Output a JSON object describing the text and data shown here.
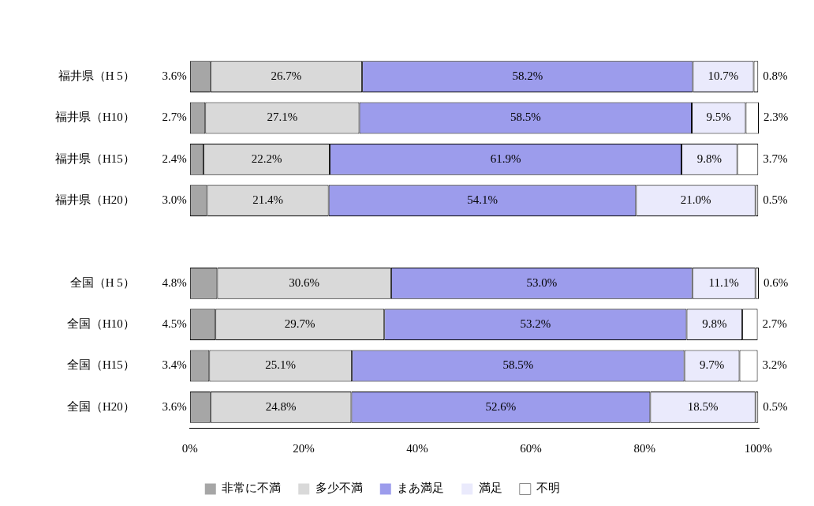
{
  "chart_data": {
    "type": "bar",
    "orientation": "horizontal",
    "stacked": true,
    "categories": [
      "福井県（H 5）",
      "福井県（H10）",
      "福井県（H15）",
      "福井県（H20）",
      null,
      "全国（H 5）",
      "全国（H10）",
      "全国（H15）",
      "全国（H20）"
    ],
    "series": [
      {
        "name": "非常に不満",
        "color": "#a6a6a6",
        "values": [
          3.6,
          2.7,
          2.4,
          3.0,
          null,
          4.8,
          4.5,
          3.4,
          3.6
        ],
        "value_labels": [
          "3.6%",
          "2.7%",
          "2.4%",
          "3.0%",
          null,
          "4.8%",
          "4.5%",
          "3.4%",
          "3.6%"
        ]
      },
      {
        "name": "多少不満",
        "color": "#d9d9d9",
        "values": [
          26.7,
          27.1,
          22.2,
          21.4,
          null,
          30.6,
          29.7,
          25.1,
          24.8
        ],
        "value_labels": [
          "26.7%",
          "27.1%",
          "22.2%",
          "21.4%",
          null,
          "30.6%",
          "29.7%",
          "25.1%",
          "24.8%"
        ]
      },
      {
        "name": "まあ満足",
        "color": "#9c9cec",
        "values": [
          58.2,
          58.5,
          61.9,
          54.1,
          null,
          53.0,
          53.2,
          58.5,
          52.6
        ],
        "value_labels": [
          "58.2%",
          "58.5%",
          "61.9%",
          "54.1%",
          null,
          "53.0%",
          "53.2%",
          "58.5%",
          "52.6%"
        ]
      },
      {
        "name": "満足",
        "color": "#eaeafc",
        "values": [
          10.7,
          9.5,
          9.8,
          21.0,
          null,
          11.1,
          9.8,
          9.7,
          18.5
        ],
        "value_labels": [
          "10.7%",
          "9.5%",
          "9.8%",
          "21.0%",
          null,
          "11.1%",
          "9.8%",
          "9.7%",
          "18.5%"
        ]
      },
      {
        "name": "不明",
        "color": "#ffffff",
        "values": [
          0.8,
          2.3,
          3.7,
          0.5,
          null,
          0.6,
          2.7,
          3.2,
          0.5
        ],
        "value_labels": [
          "0.8%",
          "2.3%",
          "3.7%",
          "0.5%",
          null,
          "0.6%",
          "2.7%",
          "3.2%",
          "0.5%"
        ]
      }
    ],
    "xlim": [
      0,
      100.1
    ],
    "xticks": [
      {
        "value": 0,
        "label": "0%"
      },
      {
        "value": 20,
        "label": "20%"
      },
      {
        "value": 40,
        "label": "40%"
      },
      {
        "value": 60,
        "label": "60%"
      },
      {
        "value": 80,
        "label": "80%"
      },
      {
        "value": 100,
        "label": "100%"
      }
    ],
    "grid": false,
    "legend": "bottom"
  }
}
